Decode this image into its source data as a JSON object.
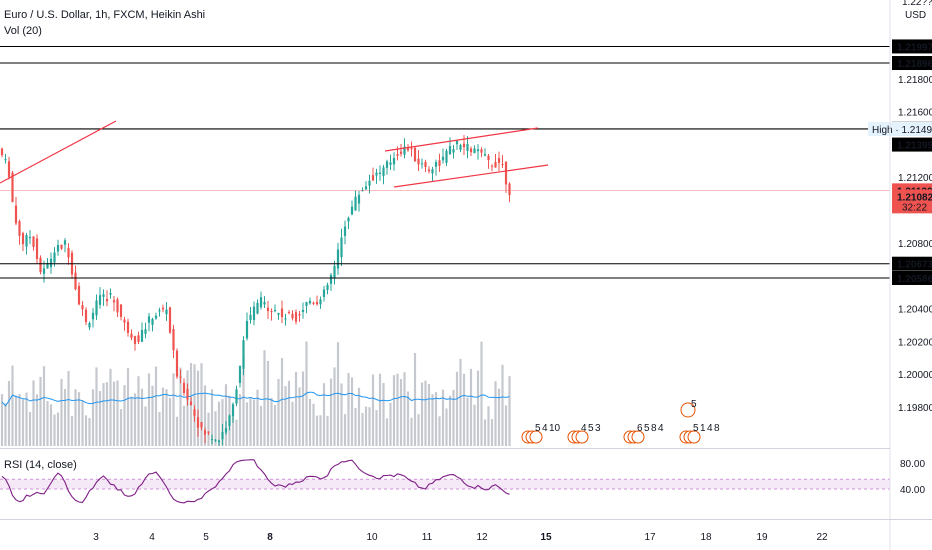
{
  "header": {
    "symbol_title": "Euro / U.S. Dollar, 1h, FXCM, Heikin Ashi",
    "volume_title": "Vol (20)",
    "rsi_title": "RSI (14, close)"
  },
  "axis": {
    "currency": "USD",
    "top_partial_label": "1.22??0"
  },
  "colors": {
    "up": "#26a69a",
    "down": "#ef5350",
    "volume": "#b2b5be",
    "volume_ma": "#2196f3",
    "rsi": "#7e1f86",
    "rsi_band": "#e1bee7",
    "trendline": "#f23645",
    "level": "#000000",
    "current_price": "#ef5350"
  },
  "chart_data": {
    "type": "candlestick",
    "x_tick_labels": [
      "3",
      "4",
      "5",
      "8",
      "10",
      "11",
      "12",
      "15",
      "17",
      "18",
      "19",
      "22"
    ],
    "bold_x_labels": [
      "8",
      "15"
    ],
    "y_tick_labels": [
      "1.21800",
      "1.21600",
      "1.21200",
      "1.20800",
      "1.20400",
      "1.20200",
      "1.20000",
      "1.19800"
    ],
    "price_range": [
      1.1955,
      1.2228
    ],
    "horizontal_levels": [
      "1.21997",
      "1.21896",
      "1.21495",
      "1.20673",
      "1.20586"
    ],
    "high_label": {
      "prefix": "High",
      "value": "1.21494"
    },
    "last_high_marker": "1.21399",
    "current_price": "1.21120",
    "countdown": "32:22",
    "secondary_price": "1.21082",
    "rsi_levels": [
      "80.00",
      "40.00"
    ],
    "rsi_range": [
      0,
      100
    ],
    "event_values": [
      "5",
      "4",
      "10",
      "4",
      "5",
      "3",
      "6",
      "5",
      "8",
      "4",
      "5",
      "5",
      "1",
      "4",
      "8"
    ]
  }
}
